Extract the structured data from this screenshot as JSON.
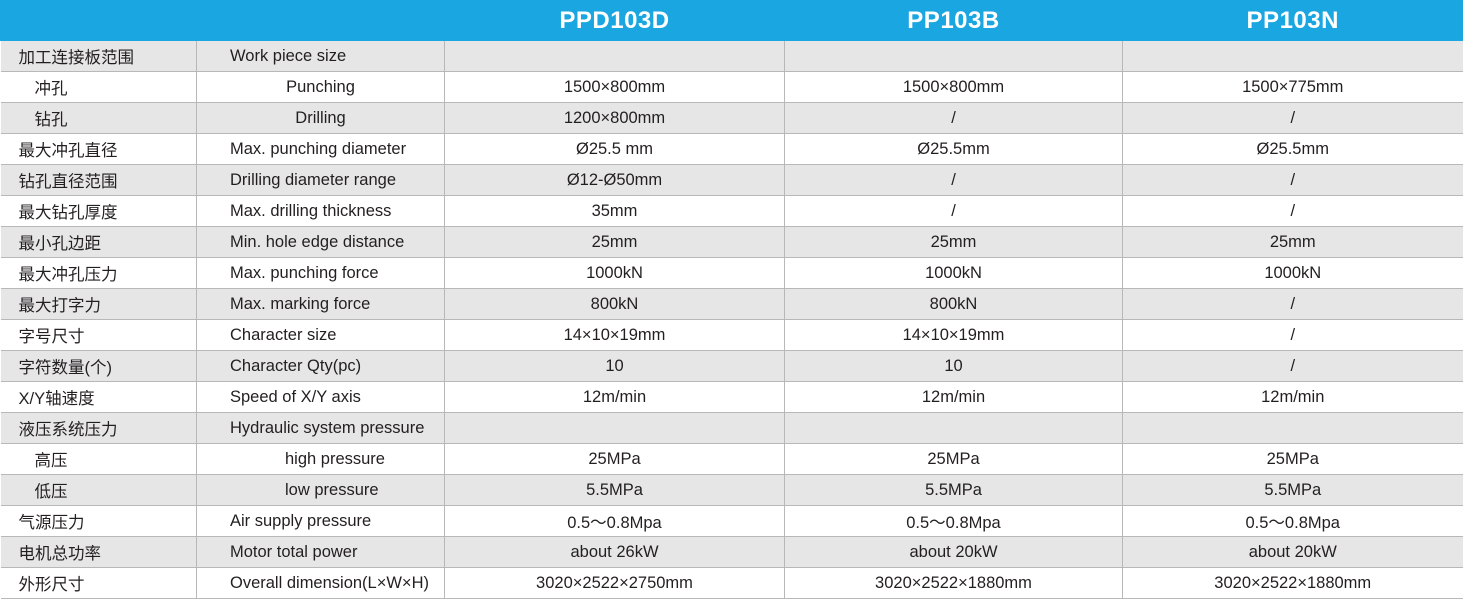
{
  "columns": [
    "PPD103D",
    "PP103B",
    "PP103N"
  ],
  "rows": [
    {
      "zh": "加工连接板范围",
      "en": "Work piece size",
      "vals": [
        "",
        "",
        ""
      ]
    },
    {
      "zh": "冲孔",
      "en": "Punching",
      "vals": [
        "1500×800mm",
        "1500×800mm",
        "1500×775mm"
      ]
    },
    {
      "zh": "钻孔",
      "en": "Drilling",
      "vals": [
        "1200×800mm",
        "/",
        "/"
      ]
    },
    {
      "zh": "最大冲孔直径",
      "en": "Max. punching diameter",
      "vals": [
        "Ø25.5 mm",
        "Ø25.5mm",
        "Ø25.5mm"
      ]
    },
    {
      "zh": "钻孔直径范围",
      "en": "Drilling diameter range",
      "vals": [
        "Ø12-Ø50mm",
        "/",
        "/"
      ]
    },
    {
      "zh": "最大钻孔厚度",
      "en": "Max. drilling thickness",
      "vals": [
        "35mm",
        "/",
        "/"
      ]
    },
    {
      "zh": "最小孔边距",
      "en": "Min. hole edge distance",
      "vals": [
        "25mm",
        "25mm",
        "25mm"
      ]
    },
    {
      "zh": "最大冲孔压力",
      "en": "Max. punching force",
      "vals": [
        "1000kN",
        "1000kN",
        "1000kN"
      ]
    },
    {
      "zh": "最大打字力",
      "en": "Max. marking force",
      "vals": [
        "800kN",
        "800kN",
        "/"
      ]
    },
    {
      "zh": "字号尺寸",
      "en": "Character size",
      "vals": [
        "14×10×19mm",
        "14×10×19mm",
        "/"
      ]
    },
    {
      "zh": "字符数量(个)",
      "en": "Character Qty(pc)",
      "vals": [
        "10",
        "10",
        "/"
      ]
    },
    {
      "zh": "X/Y轴速度",
      "en": "Speed of X/Y axis",
      "vals": [
        "12m/min",
        "12m/min",
        "12m/min"
      ]
    },
    {
      "zh": "液压系统压力",
      "en": "Hydraulic system pressure",
      "vals": [
        "",
        "",
        ""
      ]
    },
    {
      "zh": "高压",
      "en": "high pressure",
      "vals": [
        "25MPa",
        "25MPa",
        "25MPa"
      ]
    },
    {
      "zh": "低压",
      "en": "low pressure",
      "vals": [
        "5.5MPa",
        "5.5MPa",
        "5.5MPa"
      ]
    },
    {
      "zh": "气源压力",
      "en": "Air supply pressure",
      "vals": [
        "0.5～0.8Mpa",
        "0.5～0.8Mpa",
        "0.5～0.8Mpa"
      ]
    },
    {
      "zh": "电机总功率",
      "en": "Motor total power",
      "vals": [
        "about 26kW",
        "about 20kW",
        "about 20kW"
      ]
    },
    {
      "zh": "外形尺寸",
      "en": "Overall dimension(L×W×H)",
      "vals": [
        "3020×2522×2750mm",
        "3020×2522×1880mm",
        "3020×2522×1880mm"
      ]
    }
  ]
}
